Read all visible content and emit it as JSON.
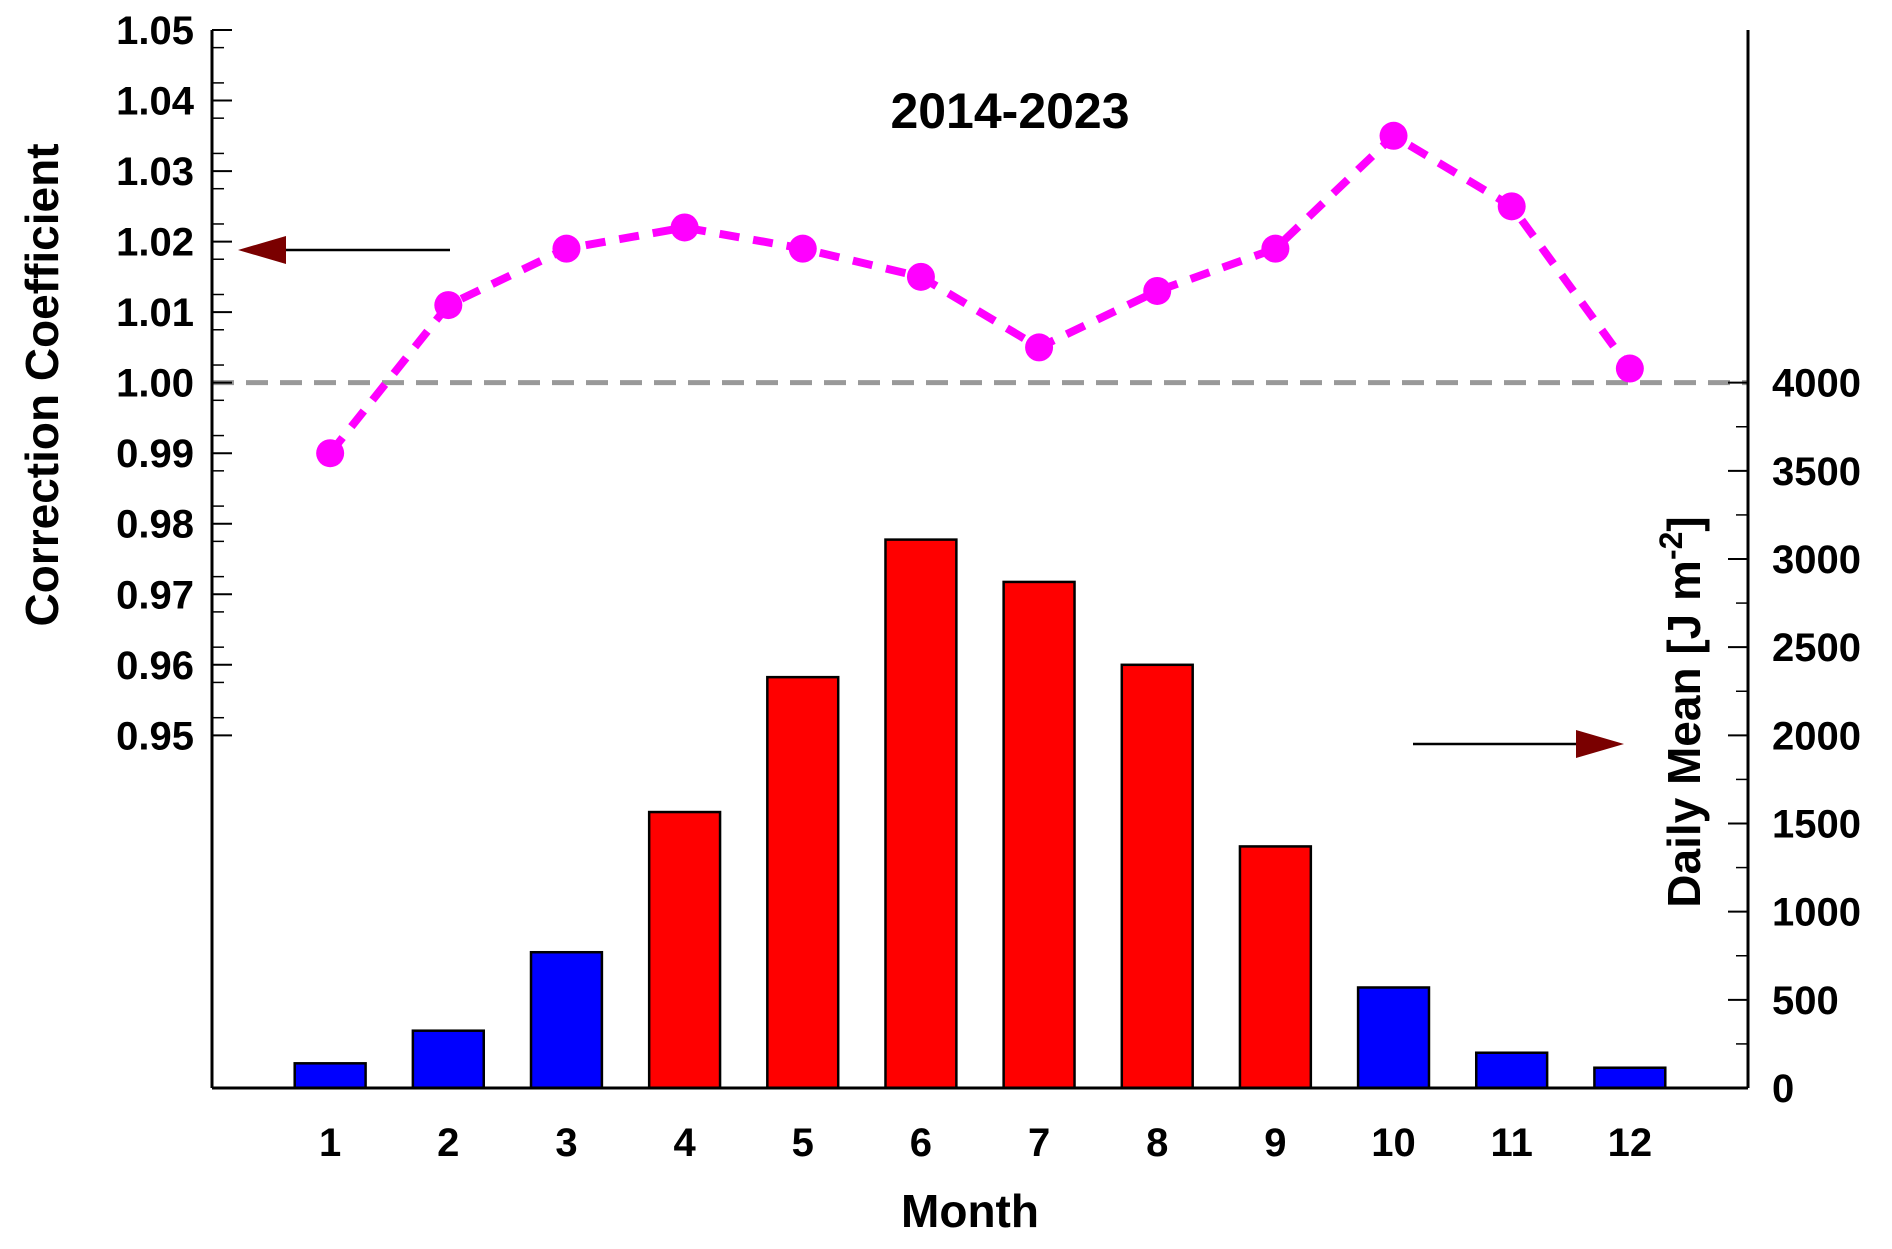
{
  "chart_data": {
    "type": "bar+line",
    "title": "2014-2023",
    "xlabel": "Month",
    "categories": [
      "1",
      "2",
      "3",
      "4",
      "5",
      "6",
      "7",
      "8",
      "9",
      "10",
      "11",
      "12"
    ],
    "left_axis": {
      "label": "Correction Coefficient",
      "ticks": [
        "1.05",
        "1.04",
        "1.03",
        "1.02",
        "1.01",
        "1.00",
        "0.99",
        "0.98",
        "0.97",
        "0.96",
        "0.95"
      ],
      "range": [
        0.9,
        1.05
      ]
    },
    "right_axis": {
      "label_main": "Daily Mean  [J m",
      "label_sup": "-2",
      "label_end": "]",
      "ticks": [
        "0",
        "500",
        "1000",
        "1500",
        "2000",
        "2500",
        "3000",
        "3500",
        "4000"
      ],
      "range": [
        0,
        4000
      ]
    },
    "series": [
      {
        "type": "line",
        "axis": "left",
        "color": "#ff00ff",
        "style": "dashed",
        "values": [
          0.99,
          1.011,
          1.019,
          1.022,
          1.019,
          1.015,
          1.005,
          1.013,
          1.019,
          1.035,
          1.025,
          1.002
        ]
      },
      {
        "type": "bar",
        "axis": "right",
        "values": [
          140,
          325,
          770,
          1565,
          2330,
          3110,
          2870,
          2400,
          1370,
          570,
          200,
          115
        ],
        "colors": [
          "#0000ff",
          "#0000ff",
          "#0000ff",
          "#ff0000",
          "#ff0000",
          "#ff0000",
          "#ff0000",
          "#ff0000",
          "#ff0000",
          "#0000ff",
          "#0000ff",
          "#0000ff"
        ]
      }
    ],
    "reference_line": {
      "value": 1.0,
      "axis": "left",
      "color": "#999999",
      "style": "dashed"
    },
    "arrow_color": "#7a0000"
  }
}
